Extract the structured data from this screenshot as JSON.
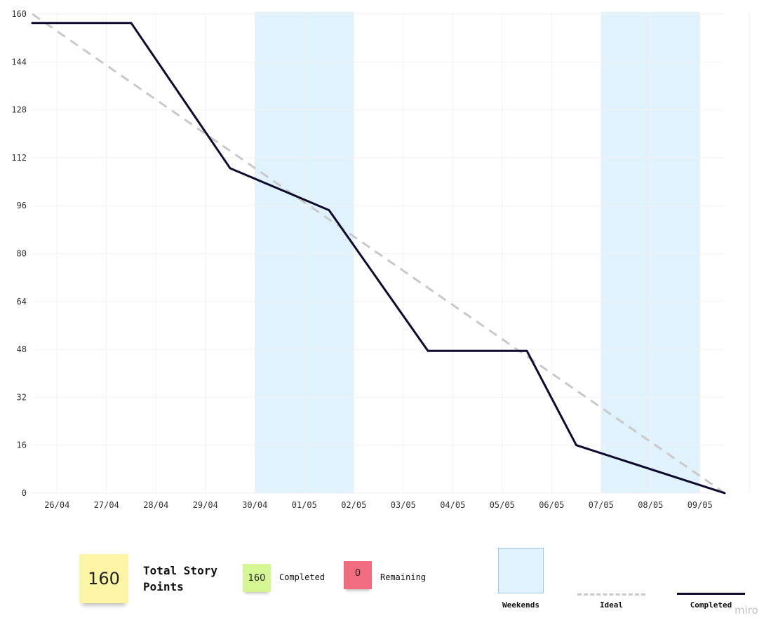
{
  "chart_data": {
    "type": "line",
    "title": "",
    "xlabel": "",
    "ylabel": "",
    "categories": [
      "26/04",
      "27/04",
      "28/04",
      "29/04",
      "30/04",
      "01/05",
      "02/05",
      "03/05",
      "04/05",
      "05/05",
      "06/05",
      "07/05",
      "08/05",
      "09/05"
    ],
    "y_ticks": [
      "0",
      "16",
      "32",
      "48",
      "64",
      "80",
      "96",
      "112",
      "128",
      "144",
      "160"
    ],
    "ylim": [
      0,
      160
    ],
    "grid": true,
    "weekend_bands": [
      {
        "from": "30/04",
        "to": "01/05"
      },
      {
        "from": "07/05",
        "to": "08/05"
      }
    ],
    "series": [
      {
        "name": "Ideal",
        "style": "dashed",
        "color": "#c9c9c9",
        "x": [
          "26/04",
          "09/05"
        ],
        "values": [
          160,
          0
        ]
      },
      {
        "name": "Completed",
        "style": "solid",
        "color": "#0d0a2e",
        "x": [
          "26/04",
          "28/04",
          "30/04",
          "02/05",
          "04/05",
          "06/05",
          "07/05",
          "09/05"
        ],
        "values": [
          157,
          157,
          108.5,
          94.5,
          47.5,
          47.5,
          16,
          0
        ]
      }
    ],
    "colors": {
      "weekend_band": "#e0f3fc",
      "weekend_border": "#9cc7e6",
      "grid": "#f2f2f2"
    }
  },
  "summary": {
    "total_value": "160",
    "total_label": "Total Story Points",
    "completed_value": "160",
    "completed_label": "Completed",
    "remaining_value": "0",
    "remaining_label": "Remaining"
  },
  "legend": {
    "weekends": "Weekends",
    "ideal": "Ideal",
    "completed": "Completed"
  },
  "watermark": "miro"
}
